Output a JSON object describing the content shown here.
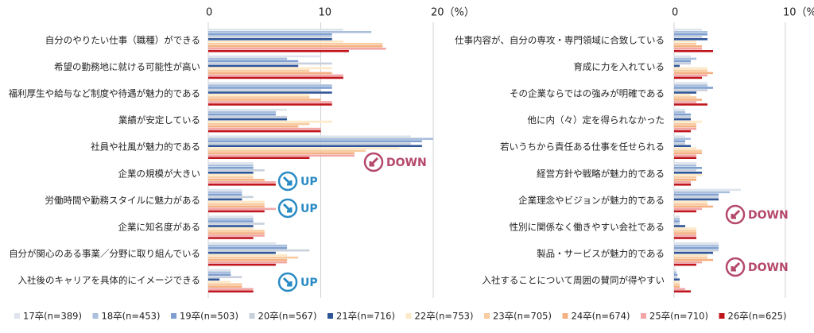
{
  "chart_data": [
    {
      "type": "bar",
      "orientation": "horizontal",
      "categories": [
        "自分のやりたい仕事（職種）ができる",
        "希望の勤務地に就ける可能性が高い",
        "福利厚生や給与など制度や待遇が魅力的である",
        "業績が安定している",
        "社員や社風が魅力的である",
        "企業の規模が大きい",
        "労働時間や勤務スタイルに魅力がある",
        "企業に知名度がある",
        "自分が関心のある事業／分野に取り組んでいる",
        "入社後のキャリアを具体的にイメージできる"
      ],
      "series": [
        {
          "name": "17卒(n=389)",
          "color": "#dfe4ec",
          "values": [
            12,
            10,
            10,
            7,
            18,
            4,
            3,
            4,
            6,
            2
          ]
        },
        {
          "name": "18卒(n=453)",
          "color": "#a9bfdc",
          "values": [
            14.5,
            7,
            11,
            6,
            20,
            4,
            3,
            4,
            7,
            2
          ]
        },
        {
          "name": "19卒(n=503)",
          "color": "#7f9fd0",
          "values": [
            11,
            8,
            11,
            6,
            19,
            4,
            3,
            4,
            7,
            2
          ]
        },
        {
          "name": "20卒(n=567)",
          "color": "#c8d0dc",
          "values": [
            11,
            11,
            10,
            7,
            18,
            5,
            4,
            5,
            9,
            3
          ]
        },
        {
          "name": "21卒(n=716)",
          "color": "#2e5597",
          "values": [
            11,
            8,
            11,
            7,
            19,
            4,
            3,
            4,
            6,
            1
          ]
        },
        {
          "name": "22卒(n=753)",
          "color": "#fde9c8",
          "values": [
            12,
            11,
            9,
            11,
            17,
            4,
            5,
            4,
            7,
            2
          ]
        },
        {
          "name": "23卒(n=705)",
          "color": "#f8cba0",
          "values": [
            15.5,
            9,
            9,
            9,
            14,
            4,
            5,
            5,
            8,
            3
          ]
        },
        {
          "name": "24卒(n=674)",
          "color": "#f4b183",
          "values": [
            15.5,
            11,
            10,
            8,
            13,
            5,
            5,
            5,
            7,
            3
          ]
        },
        {
          "name": "25卒(n=710)",
          "color": "#f2a6a6",
          "values": [
            15.8,
            12,
            11,
            10,
            13,
            6,
            6,
            5,
            7,
            4
          ]
        },
        {
          "name": "26卒(n=625)",
          "color": "#c0151d",
          "values": [
            12.5,
            12,
            11,
            10,
            9,
            6,
            5,
            4,
            6,
            4
          ]
        }
      ],
      "xlim": [
        0,
        20
      ],
      "xticks": [
        0,
        10,
        {
          "value": 20,
          "label": "20（%）"
        }
      ],
      "annotations": [
        "DOWN",
        "UP",
        "UP",
        "UP"
      ]
    },
    {
      "type": "bar",
      "orientation": "horizontal",
      "categories": [
        "仕事内容が、自分の専攻・専門領域に合致している",
        "育成に力を入れている",
        "その企業ならではの強みが明確である",
        "他に内（々）定を得られなかった",
        "若いうちから責任ある仕事を任せられる",
        "経営方針や戦略が魅力的である",
        "企業理念やビジョンが魅力的である",
        "性別に関係なく働きやすい会社である",
        "製品・サービスが魅力的である",
        "入社することについて周囲の賛同が得やすい"
      ],
      "series": [
        {
          "color": "#dfe4ec",
          "values": [
            2.5,
            1.5,
            3,
            1,
            1,
            2,
            6,
            0.5,
            4,
            0.2
          ]
        },
        {
          "color": "#a9bfdc",
          "values": [
            3,
            2,
            3,
            1,
            1.5,
            2,
            5,
            0.5,
            4,
            0.2
          ]
        },
        {
          "color": "#7f9fd0",
          "values": [
            3,
            1.5,
            3.5,
            1.5,
            1,
            2.5,
            4,
            0.5,
            4,
            0.3
          ]
        },
        {
          "color": "#c8d0dc",
          "values": [
            2.5,
            1.5,
            3,
            1.5,
            1,
            2,
            4,
            0.5,
            4,
            0.3
          ]
        },
        {
          "color": "#2e5597",
          "values": [
            3,
            0.5,
            2,
            1.5,
            1.5,
            2.5,
            4,
            1,
            3.5,
            0.5
          ]
        },
        {
          "color": "#fde9c8",
          "values": [
            2,
            3,
            1.5,
            2.5,
            2,
            2.5,
            3,
            2,
            3,
            0.5
          ]
        },
        {
          "color": "#f8cba0",
          "values": [
            2,
            3,
            2,
            2,
            2.5,
            2,
            3,
            2,
            3,
            0.5
          ]
        },
        {
          "color": "#f4b183",
          "values": [
            2.5,
            3.5,
            2.5,
            2,
            2.5,
            2,
            3.5,
            2,
            3.5,
            0.5
          ]
        },
        {
          "color": "#f2a6a6",
          "values": [
            2.5,
            3,
            2,
            2,
            2,
            1.5,
            2.5,
            2,
            2.5,
            1
          ]
        },
        {
          "color": "#c0151d",
          "values": [
            3.5,
            2.5,
            3,
            1.5,
            2,
            1.5,
            2,
            2,
            2,
            1.5
          ]
        }
      ],
      "xlim": [
        0,
        10
      ],
      "xticks": [
        0,
        {
          "value": 10,
          "label": "10（%）"
        }
      ],
      "annotations": [
        "DOWN",
        "DOWN"
      ]
    }
  ]
}
